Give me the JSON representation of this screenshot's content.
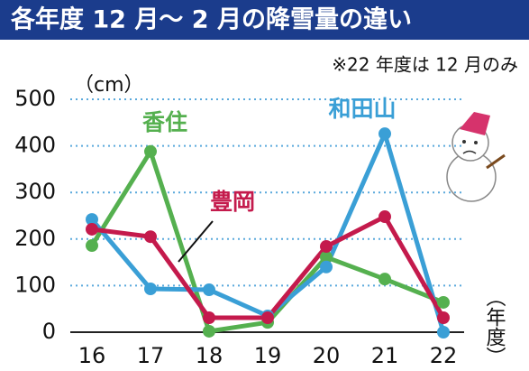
{
  "chart_data": {
    "type": "line",
    "title": "各年度 12 月～ 2 月の降雪量の違い",
    "note": "※22 年度は 12 月のみ",
    "y_label": "（cm）",
    "x_label": "（年度）",
    "categories": [
      "16",
      "17",
      "18",
      "19",
      "20",
      "21",
      "22"
    ],
    "series": [
      {
        "name": "香住",
        "color": "#55b04f",
        "values": [
          186,
          388,
          2,
          21,
          161,
          114,
          64
        ]
      },
      {
        "name": "和田山",
        "color": "#3a9fd6",
        "values": [
          242,
          93,
          91,
          35,
          140,
          426,
          0
        ]
      },
      {
        "name": "豊岡",
        "color": "#c41a4c",
        "values": [
          221,
          205,
          31,
          31,
          184,
          248,
          31
        ]
      }
    ],
    "ylim": [
      0,
      500
    ],
    "yticks": [
      0,
      100,
      200,
      300,
      400,
      500
    ],
    "grid": true
  }
}
